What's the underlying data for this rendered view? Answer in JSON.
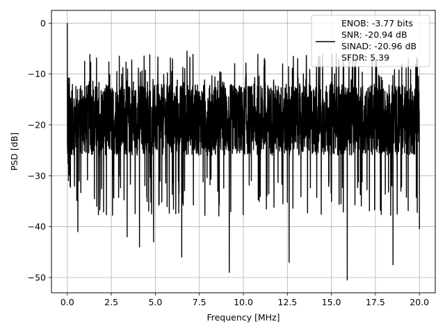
{
  "chart_data": {
    "type": "line",
    "title": "",
    "xlabel": "Frequency [MHz]",
    "ylabel": "PSD [dB]",
    "xlim": [
      -0.9,
      20.9
    ],
    "ylim": [
      -53,
      2.5
    ],
    "x_ticks": [
      0.0,
      2.5,
      5.0,
      7.5,
      10.0,
      12.5,
      15.0,
      17.5,
      20.0
    ],
    "x_tick_labels": [
      "0.0",
      "2.5",
      "5.0",
      "7.5",
      "10.0",
      "12.5",
      "15.0",
      "17.5",
      "20.0"
    ],
    "y_ticks": [
      0,
      -10,
      -20,
      -30,
      -40,
      -50
    ],
    "y_tick_labels": [
      "0",
      "−10",
      "−20",
      "−30",
      "−40",
      "−50"
    ],
    "grid": true,
    "legend_position": "top-right",
    "series": [
      {
        "name": "ENOB: -3.77 bits\nSNR: -20.94 dB\nSINAD: -20.96 dB\nSFDR: 5.39",
        "legend_lines": [
          "ENOB: -3.77 bits",
          "SNR: -20.94 dB",
          "SINAD: -20.96 dB",
          "SFDR: 5.39"
        ],
        "color": "#000000",
        "x_range": [
          0,
          20
        ],
        "peak": {
          "x": 0.0,
          "y": 0
        },
        "typical_band": [
          -26,
          -12
        ],
        "noted_minima": [
          {
            "x": 0.6,
            "y": -41
          },
          {
            "x": 3.4,
            "y": -42
          },
          {
            "x": 4.1,
            "y": -44
          },
          {
            "x": 4.9,
            "y": -43
          },
          {
            "x": 6.5,
            "y": -46
          },
          {
            "x": 9.2,
            "y": -49
          },
          {
            "x": 12.6,
            "y": -47
          },
          {
            "x": 15.9,
            "y": -50.5
          },
          {
            "x": 18.5,
            "y": -47.5
          },
          {
            "x": 20.0,
            "y": -40.5
          }
        ],
        "noted_maxima": [
          {
            "x": 6.8,
            "y": -5.5
          },
          {
            "x": 14.5,
            "y": -6
          },
          {
            "x": 16.0,
            "y": -6.5
          }
        ]
      }
    ]
  }
}
